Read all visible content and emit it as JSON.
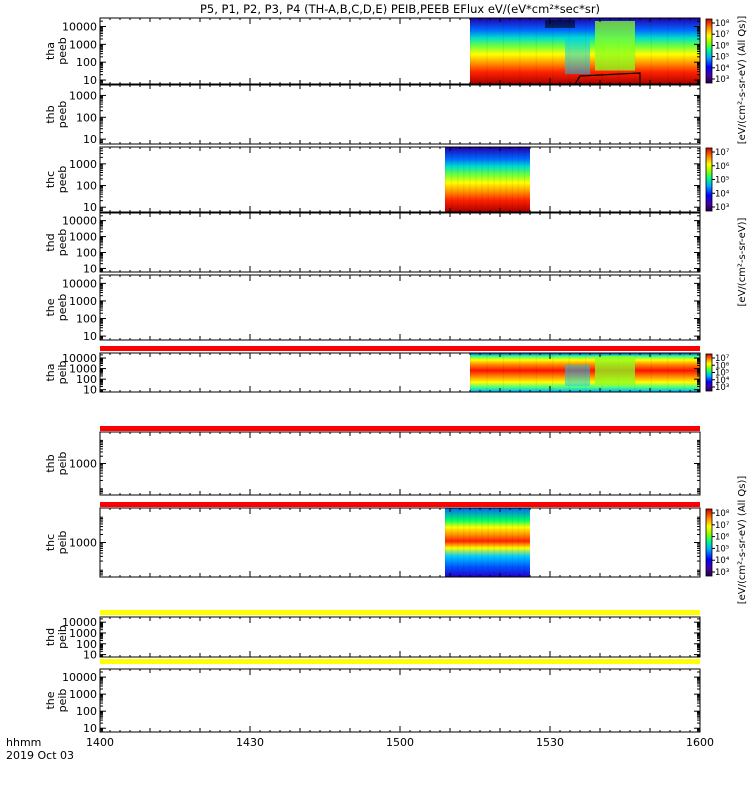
{
  "title": "P5, P1, P2, P3, P4 (TH-A,B,C,D,E) PEIB,PEEB EFlux eV/(eV*cm²*sec*sr)",
  "x_axis": {
    "unit_label": "hhmm",
    "date_label": "2019 Oct 03",
    "ticks": [
      "1400",
      "1430",
      "1500",
      "1530",
      "1600"
    ]
  },
  "colorbar_labels": {
    "electron": "[eV/(cm²-s-sr-eV)]",
    "electron_allqs": "[eV/(cm²-s-sr-eV) (All Qs)]",
    "ion_allqs": "[eV/(cm²-s-sr-eV) (All Qs)]"
  },
  "colors": {
    "band_red": "#ff0000",
    "band_yellow": "#ffff00",
    "cb_top": "#990000",
    "cb_bottom": "#220044"
  },
  "chart_data": {
    "type": "heatmap",
    "x_range_minutes": [
      0,
      120
    ],
    "y_scale": "log",
    "panels": [
      {
        "id": "tha_peeb",
        "label": "tha",
        "sublabel": "peeb",
        "yticks": [
          "10000",
          "1000",
          "100",
          "10"
        ],
        "ylim": [
          6,
          30000
        ],
        "data_start_min": 74,
        "data_end_min": 120,
        "cb_ticks": [
          "10⁸",
          "10⁷",
          "10⁶",
          "10⁵",
          "10⁴",
          "10³"
        ],
        "flag": null,
        "flag_color": null
      },
      {
        "id": "thb_peeb",
        "label": "thb",
        "sublabel": "peeb",
        "yticks": [
          "1000",
          "100",
          "10"
        ],
        "ylim": [
          6,
          3000
        ],
        "data_start_min": null,
        "data_end_min": null,
        "cb_ticks": [],
        "flag": null,
        "flag_color": null
      },
      {
        "id": "thc_peeb",
        "label": "thc",
        "sublabel": "peeb",
        "yticks": [
          "1000",
          "100",
          "10"
        ],
        "ylim": [
          6,
          6000
        ],
        "data_start_min": 69,
        "data_end_min": 86,
        "cb_ticks": [
          "10⁷",
          "10⁶",
          "10⁵",
          "10⁴",
          "10³"
        ],
        "flag": null,
        "flag_color": null
      },
      {
        "id": "thd_peeb",
        "label": "thd",
        "sublabel": "peeb",
        "yticks": [
          "10000",
          "1000",
          "100",
          "10"
        ],
        "ylim": [
          6,
          30000
        ],
        "data_start_min": null,
        "data_end_min": null,
        "cb_ticks": [],
        "flag": null,
        "flag_color": null
      },
      {
        "id": "the_peeb",
        "label": "the",
        "sublabel": "peeb",
        "yticks": [
          "10000",
          "1000",
          "100",
          "10"
        ],
        "ylim": [
          6,
          30000
        ],
        "data_start_min": null,
        "data_end_min": null,
        "cb_ticks": [],
        "flag": "red",
        "flag_color": "red"
      },
      {
        "id": "tha_peib",
        "label": "tha",
        "sublabel": "peib",
        "yticks": [
          "10000",
          "1000",
          "100",
          "10"
        ],
        "ylim": [
          6,
          30000
        ],
        "data_start_min": 74,
        "data_end_min": 120,
        "cb_ticks": [
          "10⁷",
          "10⁶",
          "10⁵",
          "10⁴",
          "10³"
        ],
        "flag": "red",
        "flag_color": "red"
      },
      {
        "id": "thb_peib",
        "label": "thb",
        "sublabel": "peib",
        "yticks": [
          "1000"
        ],
        "ylim": [
          50,
          20000
        ],
        "data_start_min": null,
        "data_end_min": null,
        "cb_ticks": [],
        "flag": "red",
        "flag_color": "red"
      },
      {
        "id": "thc_peib",
        "label": "thc",
        "sublabel": "peib",
        "yticks": [
          "1000"
        ],
        "ylim": [
          50,
          20000
        ],
        "data_start_min": 69,
        "data_end_min": 86,
        "cb_ticks": [
          "10⁸",
          "10⁷",
          "10⁶",
          "10⁵",
          "10⁴",
          "10³"
        ],
        "flag": "yellow",
        "flag_color": "yellow"
      },
      {
        "id": "thd_peib",
        "label": "thd",
        "sublabel": "peib",
        "yticks": [
          "10000",
          "1000",
          "100",
          "10"
        ],
        "ylim": [
          6,
          30000
        ],
        "data_start_min": null,
        "data_end_min": null,
        "cb_ticks": [],
        "flag": "yellow",
        "flag_color": "yellow"
      },
      {
        "id": "the_peib",
        "label": "the",
        "sublabel": "peib",
        "yticks": [
          "10000",
          "1000",
          "100",
          "10"
        ],
        "ylim": [
          6,
          30000
        ],
        "data_start_min": null,
        "data_end_min": null,
        "cb_ticks": [],
        "flag": null,
        "flag_color": null
      }
    ]
  }
}
